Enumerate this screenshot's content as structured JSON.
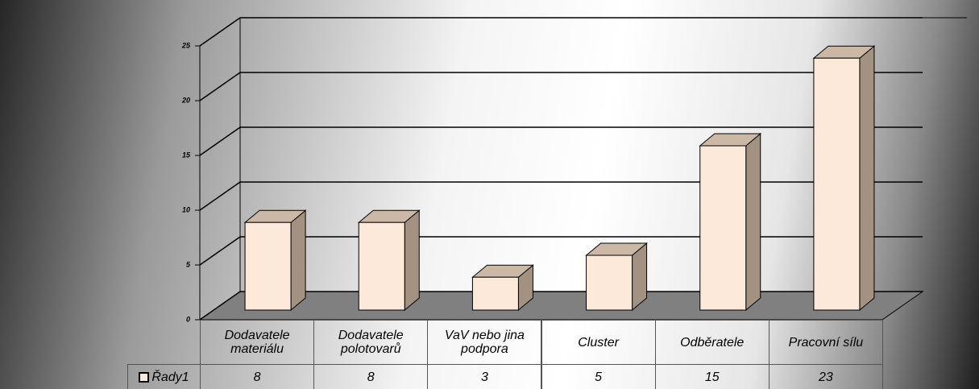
{
  "chart_data": {
    "type": "bar3d",
    "categories": [
      "Dodavatele materiálu",
      "Dodavatele polotovarů",
      "VaV nebo jina podpora",
      "Cluster",
      "Odběratele",
      "Pracovní sílu"
    ],
    "series": [
      {
        "name": "Řady1",
        "color": "#fde9d9",
        "values": [
          8,
          8,
          3,
          5,
          15,
          23
        ]
      }
    ],
    "ylim": [
      0,
      25
    ],
    "yticks": [
      0,
      5,
      10,
      15,
      20,
      25
    ],
    "grid": true,
    "data_table": true
  }
}
